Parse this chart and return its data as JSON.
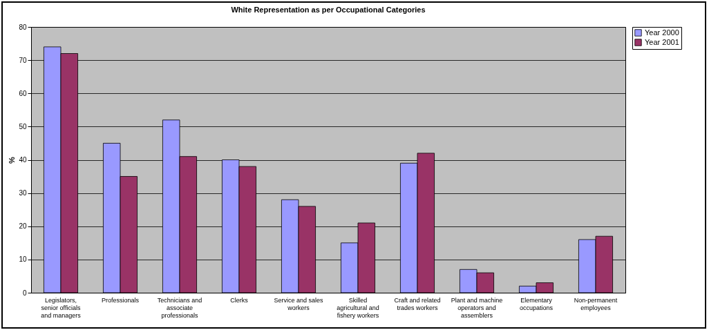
{
  "chart_data": {
    "type": "bar",
    "title": "White Representation as per Occupational Categories",
    "ylabel": "%",
    "categories": [
      "Legislators, senior officials and managers",
      "Professionals",
      "Technicians and associate professionals",
      "Clerks",
      "Service and sales workers",
      "Skilled agricultural and fishery workers",
      "Craft and related trades workers",
      "Plant and machine operators and assemblers",
      "Elementary occupations",
      "Non-permanent employees"
    ],
    "series": [
      {
        "name": "Year 2000",
        "color": "#9999ff",
        "values": [
          74,
          45,
          52,
          40,
          28,
          15,
          39,
          7,
          2,
          16
        ]
      },
      {
        "name": "Year 2001",
        "color": "#993366",
        "values": [
          72,
          35,
          41,
          38,
          26,
          21,
          42,
          6,
          3,
          17
        ]
      }
    ],
    "ylim": [
      0,
      80
    ],
    "yticks": [
      0,
      10,
      20,
      30,
      40,
      50,
      60,
      70,
      80
    ],
    "grid": "y",
    "legend": "right"
  }
}
